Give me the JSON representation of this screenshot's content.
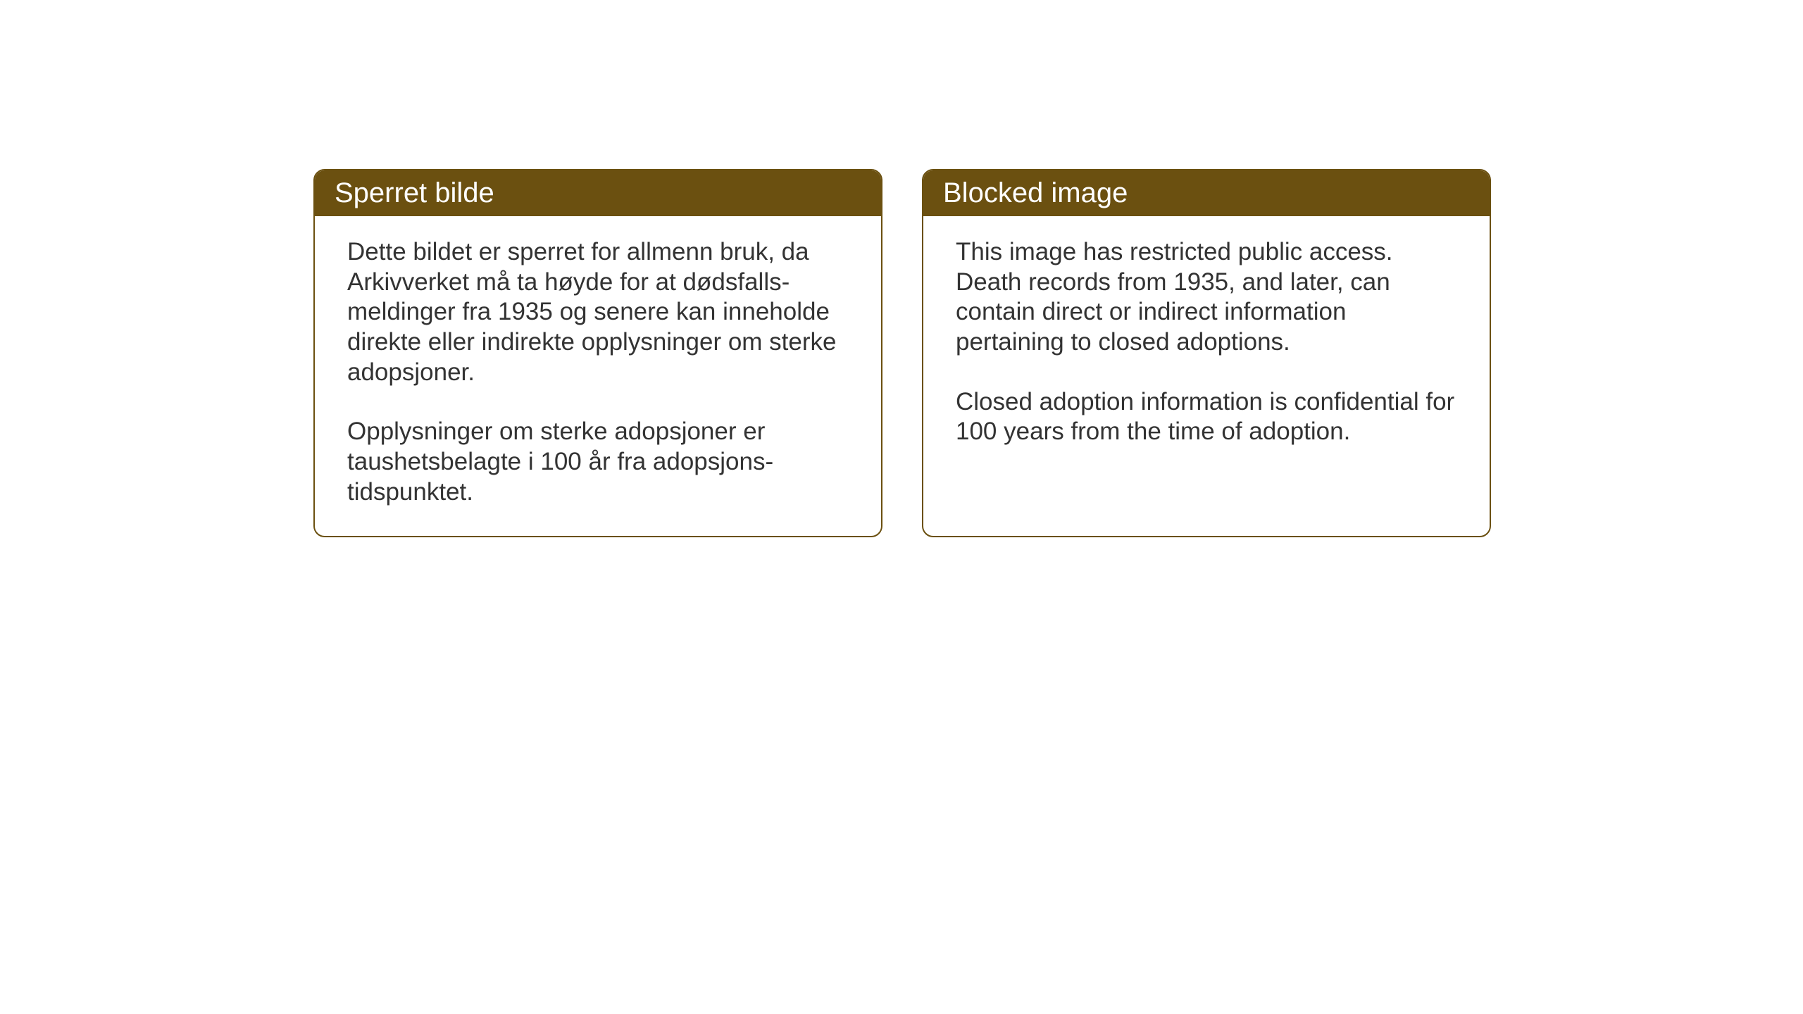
{
  "notices": {
    "norwegian": {
      "title": "Sperret bilde",
      "paragraph1": "Dette bildet er sperret for allmenn bruk, da Arkivverket må ta høyde for at dødsfalls-meldinger fra 1935 og senere kan inneholde direkte eller indirekte opplysninger om sterke adopsjoner.",
      "paragraph2": "Opplysninger om sterke adopsjoner er taushetsbelagte i 100 år fra adopsjons-tidspunktet."
    },
    "english": {
      "title": "Blocked image",
      "paragraph1": "This image has restricted public access. Death records from 1935, and later, can contain direct or indirect information pertaining to closed adoptions.",
      "paragraph2": "Closed adoption information is confidential for 100 years from the time of adoption."
    }
  },
  "styling": {
    "header_bg_color": "#6b5010",
    "header_text_color": "#ffffff",
    "border_color": "#6b5010",
    "body_text_color": "#333333",
    "background_color": "#ffffff",
    "border_radius": 16,
    "header_fontsize": 40,
    "body_fontsize": 35
  }
}
